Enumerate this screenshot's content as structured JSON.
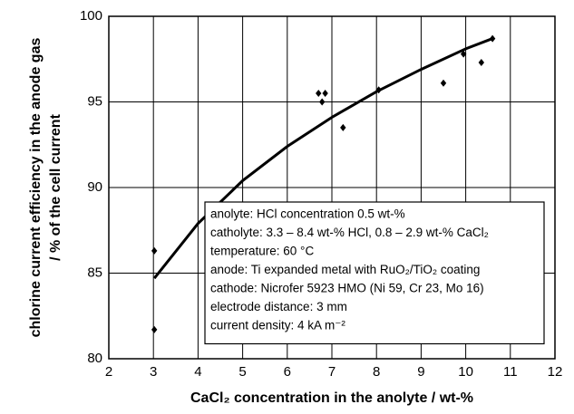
{
  "chart_data": {
    "type": "scatter",
    "xlabel": "CaCl₂ concentration in the anolyte / wt-%",
    "ylabel": [
      "chlorine current efficiency in the anode gas",
      "/ % of the cell current"
    ],
    "x": [
      3.02,
      3.02,
      6.7,
      6.78,
      6.85,
      7.25,
      8.05,
      9.5,
      9.95,
      10.35,
      10.6
    ],
    "values": [
      86.3,
      81.7,
      95.5,
      95.0,
      95.5,
      93.5,
      95.7,
      96.1,
      97.8,
      97.3,
      98.7
    ],
    "color": "#000000",
    "fit": {
      "x": [
        3.02,
        4,
        5,
        6,
        7,
        8,
        9,
        10,
        10.6
      ],
      "values": [
        84.7,
        87.9,
        90.4,
        92.4,
        94.1,
        95.6,
        96.9,
        98.1,
        98.7
      ],
      "color": "#000000"
    },
    "xlim": [
      2,
      12
    ],
    "xticks": [
      2,
      3,
      4,
      5,
      6,
      7,
      8,
      9,
      10,
      11,
      12
    ],
    "ylim": [
      80,
      100
    ],
    "yticks": [
      80,
      85,
      90,
      95,
      100
    ],
    "grid": true,
    "annotation": [
      "anolyte:  HCl concentration 0.5 wt-%",
      "catholyte:  3.3 – 8.4 wt-% HCl,   0.8 – 2.9 wt-% CaCl₂",
      "temperature:  60 °C",
      "anode:  Ti expanded metal with RuO₂/TiO₂ coating",
      "cathode:  Nicrofer 5923 HMO (Ni 59, Cr 23, Mo 16)",
      "electrode distance:  3 mm",
      "current density:  4 kA m⁻²"
    ]
  }
}
